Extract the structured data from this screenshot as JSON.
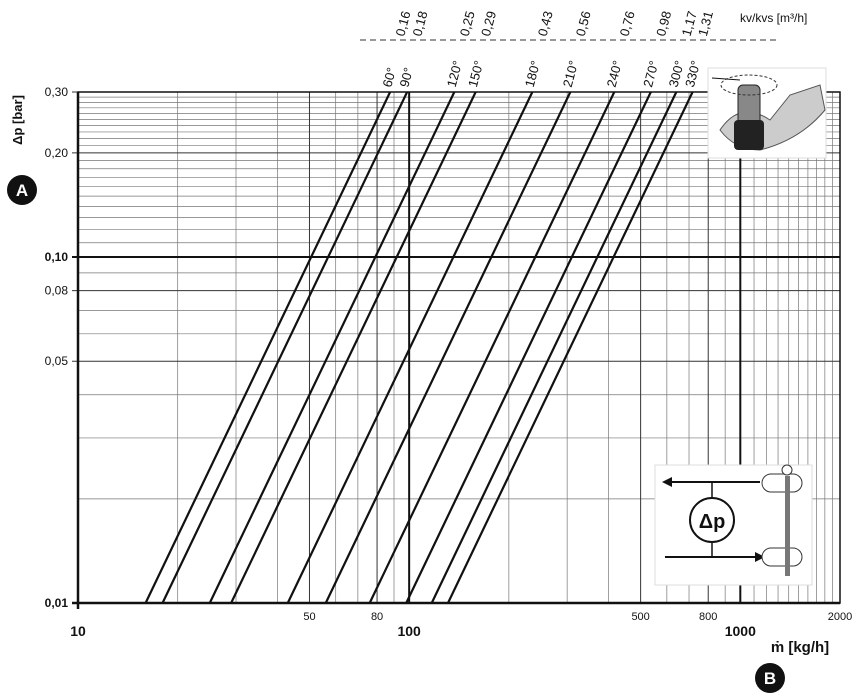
{
  "chart_data": {
    "type": "line",
    "y_label": "Δp [bar]",
    "x_label": "ṁ [kg/h]",
    "kv_title": "kv/kvs [m³/h]",
    "badge_y": "A",
    "badge_x": "B",
    "inset_label": "Δp",
    "log_x": true,
    "log_y": true,
    "xlim": [
      10,
      2000
    ],
    "ylim": [
      0.01,
      0.3
    ],
    "xticks": [
      {
        "value": 10,
        "label": "10"
      },
      50,
      80,
      {
        "value": 100,
        "label": "100"
      },
      500,
      800,
      {
        "value": 1000,
        "label": "1000"
      },
      2000
    ],
    "yticks": [
      {
        "value": 0.3,
        "label": "0,30"
      },
      {
        "value": 0.2,
        "label": "0,20"
      },
      {
        "value": 0.1,
        "label": "0,10"
      },
      {
        "value": 0.08,
        "label": "0,08"
      },
      {
        "value": 0.05,
        "label": "0,05"
      },
      {
        "value": 0.01,
        "label": "0,01"
      }
    ],
    "x_minor_grid": [
      20,
      30,
      40,
      60,
      70,
      90,
      200,
      300,
      400,
      600,
      700,
      900,
      1100,
      1200,
      1300,
      1400,
      1500,
      1600,
      1700,
      1800,
      1900
    ],
    "y_minor_grid": [
      0.02,
      0.03,
      0.04,
      0.06,
      0.07,
      0.09,
      0.11,
      0.12,
      0.13,
      0.14,
      0.15,
      0.16,
      0.17,
      0.18,
      0.19,
      0.21,
      0.22,
      0.23,
      0.24,
      0.25,
      0.26,
      0.27,
      0.28,
      0.29
    ],
    "major_x": [
      100,
      1000
    ],
    "major_y": [
      0.1
    ],
    "grid": true,
    "series": [
      {
        "name": "60°",
        "kv_label": "0,16",
        "color": "#111111",
        "x": [
          16,
          87.6
        ],
        "y": [
          0.01,
          0.3
        ]
      },
      {
        "name": "90°",
        "kv_label": "0,18",
        "color": "#111111",
        "x": [
          18,
          98.6
        ],
        "y": [
          0.01,
          0.3
        ]
      },
      {
        "name": "120°",
        "kv_label": "0,25",
        "color": "#111111",
        "x": [
          25,
          136.9
        ],
        "y": [
          0.01,
          0.3
        ]
      },
      {
        "name": "150°",
        "kv_label": "0,29",
        "color": "#111111",
        "x": [
          29,
          158.8
        ],
        "y": [
          0.01,
          0.3
        ]
      },
      {
        "name": "180°",
        "kv_label": "0,43",
        "color": "#111111",
        "x": [
          43,
          235.5
        ],
        "y": [
          0.01,
          0.3
        ]
      },
      {
        "name": "210°",
        "kv_label": "0,56",
        "color": "#111111",
        "x": [
          56,
          306.7
        ],
        "y": [
          0.01,
          0.3
        ]
      },
      {
        "name": "240°",
        "kv_label": "0,76",
        "color": "#111111",
        "x": [
          76,
          416.3
        ],
        "y": [
          0.01,
          0.3
        ]
      },
      {
        "name": "270°",
        "kv_label": "0,98",
        "color": "#111111",
        "x": [
          98,
          536.7
        ],
        "y": [
          0.01,
          0.3
        ]
      },
      {
        "name": "300°",
        "kv_label": "1,17",
        "color": "#111111",
        "x": [
          117,
          640.8
        ],
        "y": [
          0.01,
          0.3
        ]
      },
      {
        "name": "330°",
        "kv_label": "1,31",
        "color": "#111111",
        "x": [
          131,
          717.5
        ],
        "y": [
          0.01,
          0.3
        ]
      }
    ]
  }
}
